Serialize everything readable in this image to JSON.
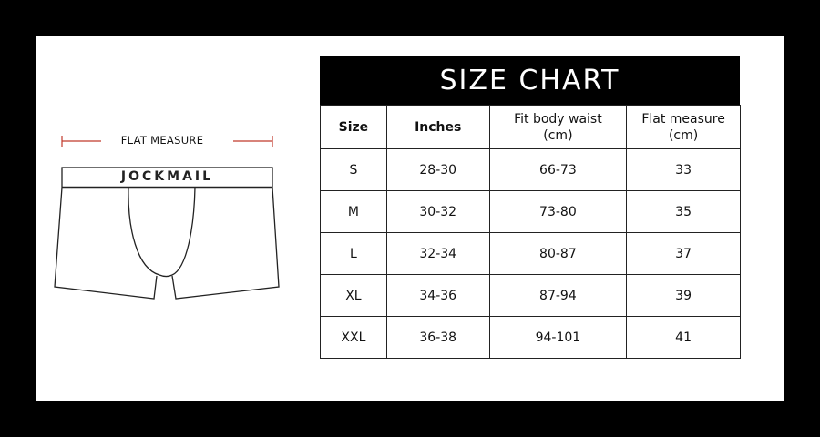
{
  "title": "SIZE CHART",
  "illustration": {
    "measure_label": "FLAT MEASURE",
    "brand": "JOCKMAIL",
    "measure_line_color": "#c0392b"
  },
  "table": {
    "headers": [
      "Size",
      "Inches",
      "Fit body waist",
      "(cm)",
      "Flat measure",
      "(cm)"
    ],
    "rows": [
      [
        "S",
        "28-30",
        "66-73",
        "33"
      ],
      [
        "M",
        "30-32",
        "73-80",
        "35"
      ],
      [
        "L",
        "32-34",
        "80-87",
        "37"
      ],
      [
        "XL",
        "34-36",
        "87-94",
        "39"
      ],
      [
        "XXL",
        "36-38",
        "94-101",
        "41"
      ]
    ]
  }
}
